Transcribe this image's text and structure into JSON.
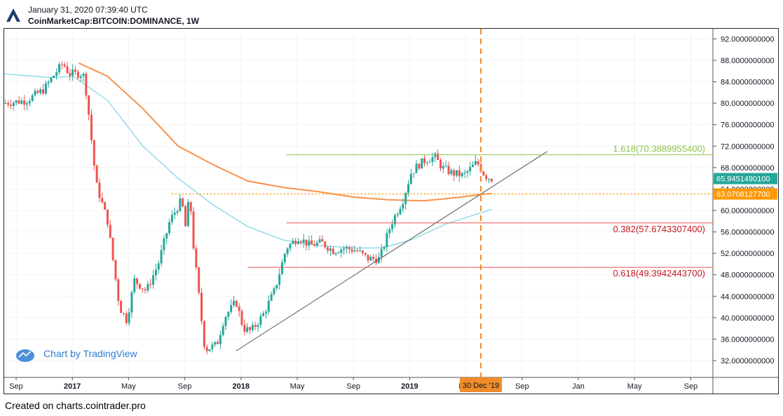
{
  "header": {
    "timestamp": "January 31, 2020 07:39:40 UTC",
    "symbol": "CoinMarketCap:BITCOIN:DOMINANCE, 1W"
  },
  "watermark": {
    "label": "Chart by TradingView"
  },
  "footer": {
    "text": "Created on charts.cointrader.pro"
  },
  "colors": {
    "up": "#26a69a",
    "down": "#ef5350",
    "ma_orange": "#f7934c",
    "ma_blue": "#7fd3e6",
    "fib_green": "#8bc34a",
    "fib_red": "#ef5350",
    "fib_red_text": "#c4171e",
    "level_orange": "#ff9800",
    "current_badge": "#26a69a",
    "axis_text": "#131722"
  },
  "chart_data": {
    "type": "candlestick",
    "ylim": [
      28,
      94
    ],
    "y_ticks": [
      "92.0000000000",
      "88.0000000000",
      "84.0000000000",
      "80.0000000000",
      "76.0000000000",
      "72.0000000000",
      "68.0000000000",
      "64.0000000000",
      "60.0000000000",
      "56.0000000000",
      "52.0000000000",
      "48.0000000000",
      "44.0000000000",
      "40.0000000000",
      "36.0000000000",
      "32.0000000000"
    ],
    "x_tick_labels": [
      "Sep",
      "2017",
      "May",
      "Sep",
      "2018",
      "May",
      "Sep",
      "2019",
      "May",
      "Sep",
      "Jan",
      "May",
      "Sep"
    ],
    "x_tick_bold": [
      false,
      true,
      false,
      false,
      true,
      false,
      false,
      true,
      false,
      false,
      false,
      false,
      false
    ],
    "x_range": [
      "2016-08",
      "2020-10"
    ],
    "price_anchors": [
      [
        "2016-08-01",
        80.0
      ],
      [
        "2016-10-01",
        80.5
      ],
      [
        "2016-11-15",
        82.5
      ],
      [
        "2016-12-20",
        86.0
      ],
      [
        "2017-01-05",
        87.5
      ],
      [
        "2017-01-20",
        85.5
      ],
      [
        "2017-02-20",
        85.5
      ],
      [
        "2017-03-01",
        85.0
      ],
      [
        "2017-03-10",
        80.0
      ],
      [
        "2017-04-01",
        65.0
      ],
      [
        "2017-05-01",
        58.0
      ],
      [
        "2017-06-01",
        42.0
      ],
      [
        "2017-06-20",
        39.5
      ],
      [
        "2017-07-10",
        47.0
      ],
      [
        "2017-08-10",
        45.0
      ],
      [
        "2017-09-10",
        50.0
      ],
      [
        "2017-10-10",
        58.0
      ],
      [
        "2017-11-10",
        62.0
      ],
      [
        "2017-11-20",
        57.0
      ],
      [
        "2017-12-01",
        63.0
      ],
      [
        "2017-12-10",
        54.0
      ],
      [
        "2018-01-01",
        39.5
      ],
      [
        "2018-01-10",
        34.0
      ],
      [
        "2018-02-10",
        35.0
      ],
      [
        "2018-03-01",
        40.0
      ],
      [
        "2018-04-01",
        43.0
      ],
      [
        "2018-04-20",
        38.0
      ],
      [
        "2018-05-10",
        37.5
      ],
      [
        "2018-06-10",
        40.5
      ],
      [
        "2018-07-10",
        45.0
      ],
      [
        "2018-08-10",
        53.0
      ],
      [
        "2018-09-10",
        55.0
      ],
      [
        "2018-10-10",
        53.5
      ],
      [
        "2018-11-10",
        54.0
      ],
      [
        "2018-12-10",
        52.5
      ],
      [
        "2019-01-10",
        53.0
      ],
      [
        "2019-02-10",
        52.5
      ],
      [
        "2019-03-10",
        51.0
      ],
      [
        "2019-04-10",
        51.0
      ],
      [
        "2019-05-10",
        57.5
      ],
      [
        "2019-06-10",
        62.0
      ],
      [
        "2019-07-01",
        67.0
      ],
      [
        "2019-07-20",
        68.5
      ],
      [
        "2019-08-10",
        69.5
      ],
      [
        "2019-09-01",
        70.0
      ],
      [
        "2019-09-20",
        68.0
      ],
      [
        "2019-10-15",
        67.0
      ],
      [
        "2019-11-15",
        66.5
      ],
      [
        "2019-12-20",
        69.0
      ],
      [
        "2020-01-10",
        66.5
      ],
      [
        "2020-01-27",
        65.9
      ]
    ],
    "ma_orange": [
      [
        "2017-02-15",
        87.5
      ],
      [
        "2017-05-01",
        85.0
      ],
      [
        "2017-08-01",
        79.0
      ],
      [
        "2017-11-01",
        72.0
      ],
      [
        "2018-02-01",
        68.5
      ],
      [
        "2018-05-01",
        65.5
      ],
      [
        "2018-08-01",
        64.3
      ],
      [
        "2018-11-01",
        63.5
      ],
      [
        "2019-02-01",
        62.5
      ],
      [
        "2019-05-01",
        62.0
      ],
      [
        "2019-08-01",
        61.8
      ],
      [
        "2019-10-15",
        62.3
      ],
      [
        "2020-01-27",
        63.2
      ]
    ],
    "ma_blue": [
      [
        "2016-08-01",
        85.5
      ],
      [
        "2016-12-01",
        84.8
      ],
      [
        "2017-02-01",
        85.0
      ],
      [
        "2017-05-01",
        80.5
      ],
      [
        "2017-08-01",
        72.0
      ],
      [
        "2017-11-01",
        66.0
      ],
      [
        "2018-02-01",
        61.0
      ],
      [
        "2018-05-01",
        57.0
      ],
      [
        "2018-08-01",
        54.5
      ],
      [
        "2018-11-01",
        53.5
      ],
      [
        "2019-02-01",
        53.0
      ],
      [
        "2019-04-15",
        53.0
      ],
      [
        "2019-07-01",
        54.5
      ],
      [
        "2019-10-01",
        57.5
      ],
      [
        "2020-01-27",
        60.2
      ]
    ],
    "trendline": {
      "start": [
        "2018-04-01",
        33.8
      ],
      "end": [
        "2020-06-20",
        71.0
      ]
    },
    "fib_levels": [
      {
        "label": "1.618(70.3889955400)",
        "value": 70.38899554,
        "start": "2018-08-10",
        "color_key": "fib_green"
      },
      {
        "label": "0.382(57.6743307400)",
        "value": 57.67433074,
        "start": "2018-08-10",
        "color_key": "fib_red"
      },
      {
        "label": "0.618(49.3942443700)",
        "value": 49.39424437,
        "start": "2018-05-01",
        "color_key": "fib_red"
      }
    ],
    "horizontal_level": {
      "value": 63.07081277,
      "start": "2017-10-15",
      "label": "63.0708127700"
    },
    "current_price": {
      "value": 65.94514901,
      "label": "65.9451490100"
    },
    "marker": {
      "date": "2019-12-30",
      "label": "30 Dec '19"
    }
  }
}
